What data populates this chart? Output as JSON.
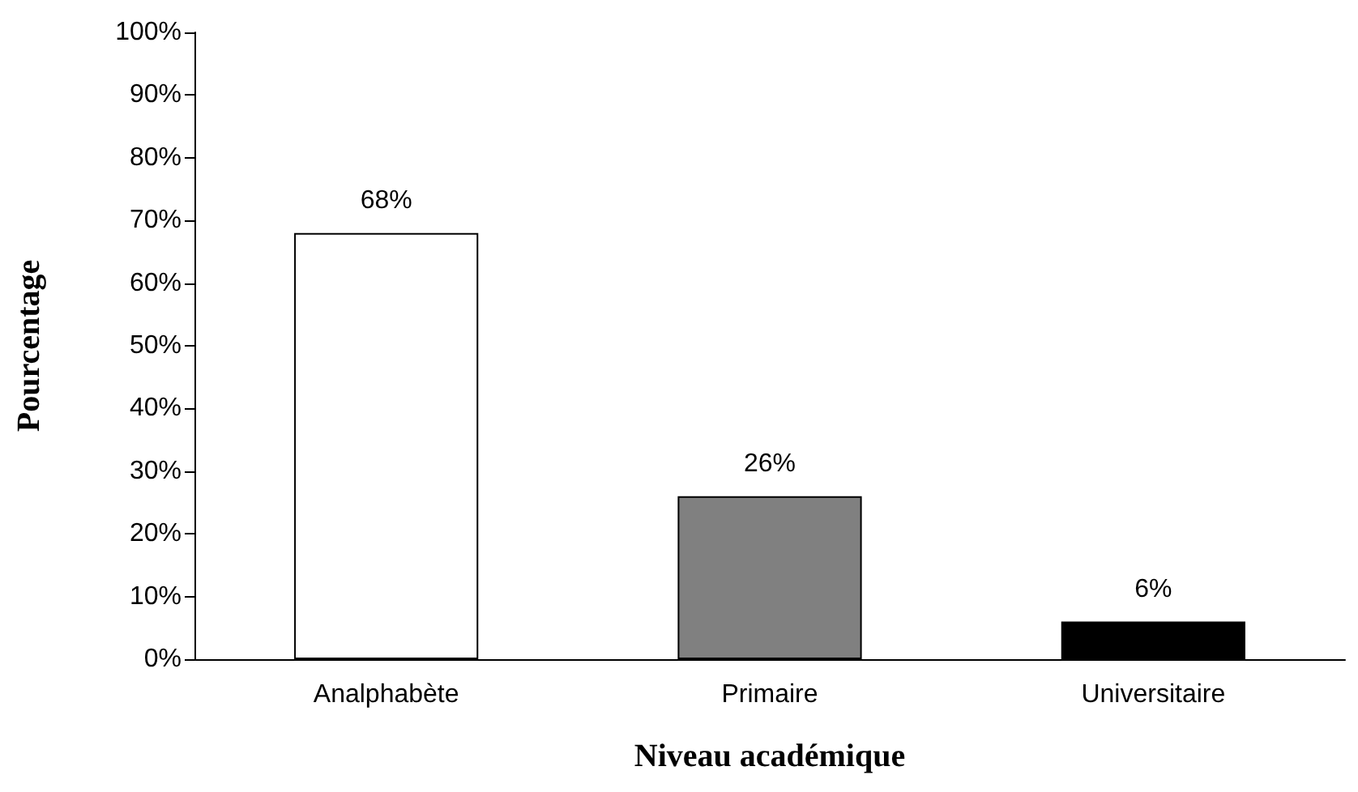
{
  "chart_data": {
    "type": "bar",
    "xlabel": "Niveau académique",
    "ylabel": "Pourcentage",
    "categories": [
      "Analphabète",
      "Primaire",
      "Universitaire"
    ],
    "values": [
      68,
      26,
      6
    ],
    "colors": [
      "#ffffff",
      "#808080",
      "#000000"
    ],
    "value_labels": [
      "68%",
      "26%",
      "6%"
    ],
    "ylim": [
      0,
      100
    ],
    "yticks": [
      {
        "value": 0,
        "label": "0%"
      },
      {
        "value": 10,
        "label": "10%"
      },
      {
        "value": 20,
        "label": "20%"
      },
      {
        "value": 30,
        "label": "30%"
      },
      {
        "value": 40,
        "label": "40%"
      },
      {
        "value": 50,
        "label": "50%"
      },
      {
        "value": 60,
        "label": "60%"
      },
      {
        "value": 70,
        "label": "70%"
      },
      {
        "value": 80,
        "label": "80%"
      },
      {
        "value": 90,
        "label": "90%"
      },
      {
        "value": 100,
        "label": "100%"
      }
    ],
    "grid": false
  }
}
